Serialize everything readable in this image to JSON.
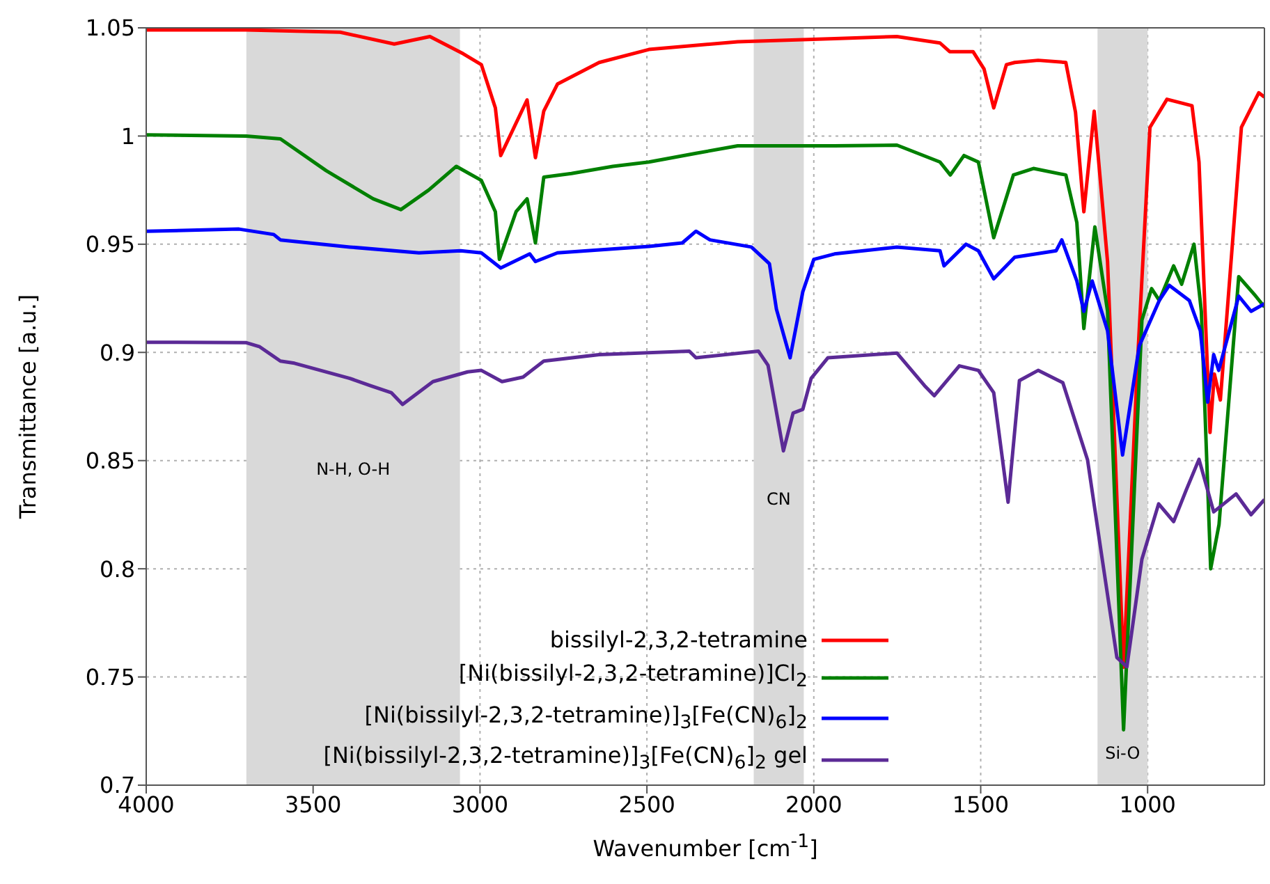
{
  "chart_data": {
    "type": "line",
    "xlabel": "Wavenumber [cm$^{-1}$]",
    "ylabel": "Transmittance [a.u.]",
    "xlim": [
      4000,
      650
    ],
    "xticks": [
      4000,
      3500,
      3000,
      2500,
      2000,
      1500,
      1000
    ],
    "ylim": [
      0.7,
      1.05
    ],
    "yticks": [
      0.7,
      0.75,
      0.8,
      0.85,
      0.9,
      0.95,
      1,
      1.05
    ],
    "grid": true,
    "legend": "bottom",
    "line_style": "solid",
    "marker": "none",
    "bands": [
      {
        "axis": "x",
        "from": 3700,
        "to": 3060,
        "label": "N-H, O-H",
        "color": "#d9d9d9"
      },
      {
        "axis": "x",
        "from": 2180,
        "to": 2030,
        "label": "CN",
        "color": "#d9d9d9"
      },
      {
        "axis": "x",
        "from": 1150,
        "to": 1000,
        "label": "Si-O",
        "color": "#d9d9d9"
      }
    ],
    "series": [
      {
        "name": "bissilyl-2,3,2-tetramine",
        "color": "#ff0000",
        "x": [
          4000,
          3700,
          3419,
          3257,
          3150,
          3050,
          2996,
          2954,
          2938,
          2859,
          2834,
          2809,
          2768,
          2643,
          2494,
          2228,
          1938,
          1751,
          1622,
          1593,
          1523,
          1490,
          1461,
          1423,
          1398,
          1328,
          1245,
          1216,
          1191,
          1160,
          1120,
          1072,
          1030,
          993,
          942,
          867,
          846,
          813,
          800,
          782,
          719,
          667,
          650
        ],
        "values": [
          1.049,
          1.049,
          1.048,
          1.0425,
          1.046,
          1.038,
          1.033,
          1.013,
          0.991,
          1.0167,
          0.99,
          1.0115,
          1.024,
          1.034,
          1.04,
          1.0436,
          1.045,
          1.046,
          1.043,
          1.039,
          1.039,
          1.031,
          1.013,
          1.033,
          1.034,
          1.035,
          1.034,
          1.011,
          0.965,
          1.0115,
          0.942,
          0.7545,
          0.896,
          1.004,
          1.017,
          1.014,
          0.988,
          0.863,
          0.89,
          0.878,
          1.004,
          1.02,
          1.018
        ]
      },
      {
        "name": "[Ni(bissilyl-2,3,2-tetramine)]Cl$_{2}$",
        "color": "#008000",
        "x": [
          4000,
          3700,
          3598,
          3461,
          3320,
          3237,
          3154,
          3071,
          2996,
          2954,
          2942,
          2892,
          2859,
          2834,
          2809,
          2726,
          2602,
          2494,
          2353,
          2228,
          1938,
          1751,
          1622,
          1591,
          1550,
          1507,
          1461,
          1402,
          1342,
          1245,
          1212,
          1191,
          1158,
          1120,
          1072,
          1017,
          988,
          965,
          922,
          898,
          861,
          839,
          811,
          786,
          727,
          676,
          650
        ],
        "values": [
          1.0005,
          1.0,
          0.9987,
          0.984,
          0.971,
          0.966,
          0.975,
          0.986,
          0.9795,
          0.965,
          0.943,
          0.965,
          0.971,
          0.9506,
          0.981,
          0.9827,
          0.986,
          0.988,
          0.992,
          0.9955,
          0.9955,
          0.9958,
          0.988,
          0.982,
          0.991,
          0.988,
          0.953,
          0.982,
          0.985,
          0.982,
          0.96,
          0.911,
          0.958,
          0.919,
          0.7256,
          0.915,
          0.9295,
          0.924,
          0.94,
          0.9315,
          0.95,
          0.919,
          0.8,
          0.8205,
          0.935,
          0.926,
          0.921
        ]
      },
      {
        "name": "[Ni(bissilyl-2,3,2-tetramine)]$_{3}$[Fe(CN)$_{6}$]$_{2}$",
        "color": "#0000ff",
        "x": [
          4000,
          3722,
          3618,
          3598,
          3390,
          3183,
          3058,
          2996,
          2938,
          2851,
          2834,
          2768,
          2494,
          2394,
          2353,
          2311,
          2187,
          2133,
          2112,
          2071,
          2033,
          2000,
          1938,
          1751,
          1622,
          1610,
          1544,
          1507,
          1461,
          1398,
          1274,
          1257,
          1212,
          1191,
          1166,
          1120,
          1075,
          1025,
          965,
          935,
          875,
          842,
          820,
          802,
          787,
          727,
          690,
          650
        ],
        "values": [
          0.956,
          0.957,
          0.9545,
          0.952,
          0.9487,
          0.946,
          0.947,
          0.946,
          0.939,
          0.9455,
          0.942,
          0.946,
          0.949,
          0.9506,
          0.956,
          0.952,
          0.9487,
          0.941,
          0.92,
          0.8975,
          0.928,
          0.943,
          0.9455,
          0.9487,
          0.947,
          0.94,
          0.95,
          0.947,
          0.934,
          0.944,
          0.947,
          0.952,
          0.933,
          0.919,
          0.933,
          0.91,
          0.8526,
          0.903,
          0.924,
          0.931,
          0.924,
          0.91,
          0.877,
          0.899,
          0.8917,
          0.926,
          0.919,
          0.9225
        ]
      },
      {
        "name": "[Ni(bissilyl-2,3,2-tetramine)]$_{3}$[Fe(CN)$_{6}$]$_{2}$ gel",
        "color": "#5b2a96",
        "x": [
          4000,
          3700,
          3660,
          3598,
          3556,
          3390,
          3328,
          3266,
          3232,
          3141,
          3037,
          2996,
          2934,
          2871,
          2809,
          2643,
          2373,
          2353,
          2166,
          2137,
          2091,
          2062,
          2033,
          2008,
          1958,
          1751,
          1668,
          1639,
          1564,
          1507,
          1461,
          1418,
          1384,
          1328,
          1254,
          1180,
          1136,
          1092,
          1062,
          1017,
          967,
          922,
          884,
          846,
          802,
          735,
          690,
          650
        ],
        "values": [
          0.9047,
          0.9045,
          0.9026,
          0.896,
          0.895,
          0.888,
          0.8846,
          0.8814,
          0.876,
          0.8865,
          0.891,
          0.8917,
          0.8865,
          0.8886,
          0.896,
          0.899,
          0.9006,
          0.8975,
          0.9006,
          0.894,
          0.8545,
          0.872,
          0.8737,
          0.888,
          0.8975,
          0.8997,
          0.8846,
          0.88,
          0.8938,
          0.8917,
          0.8814,
          0.8308,
          0.887,
          0.8917,
          0.886,
          0.8504,
          0.8045,
          0.759,
          0.7547,
          0.8045,
          0.83,
          0.8218,
          0.8365,
          0.8506,
          0.8263,
          0.8346,
          0.825,
          0.832
        ]
      }
    ]
  }
}
